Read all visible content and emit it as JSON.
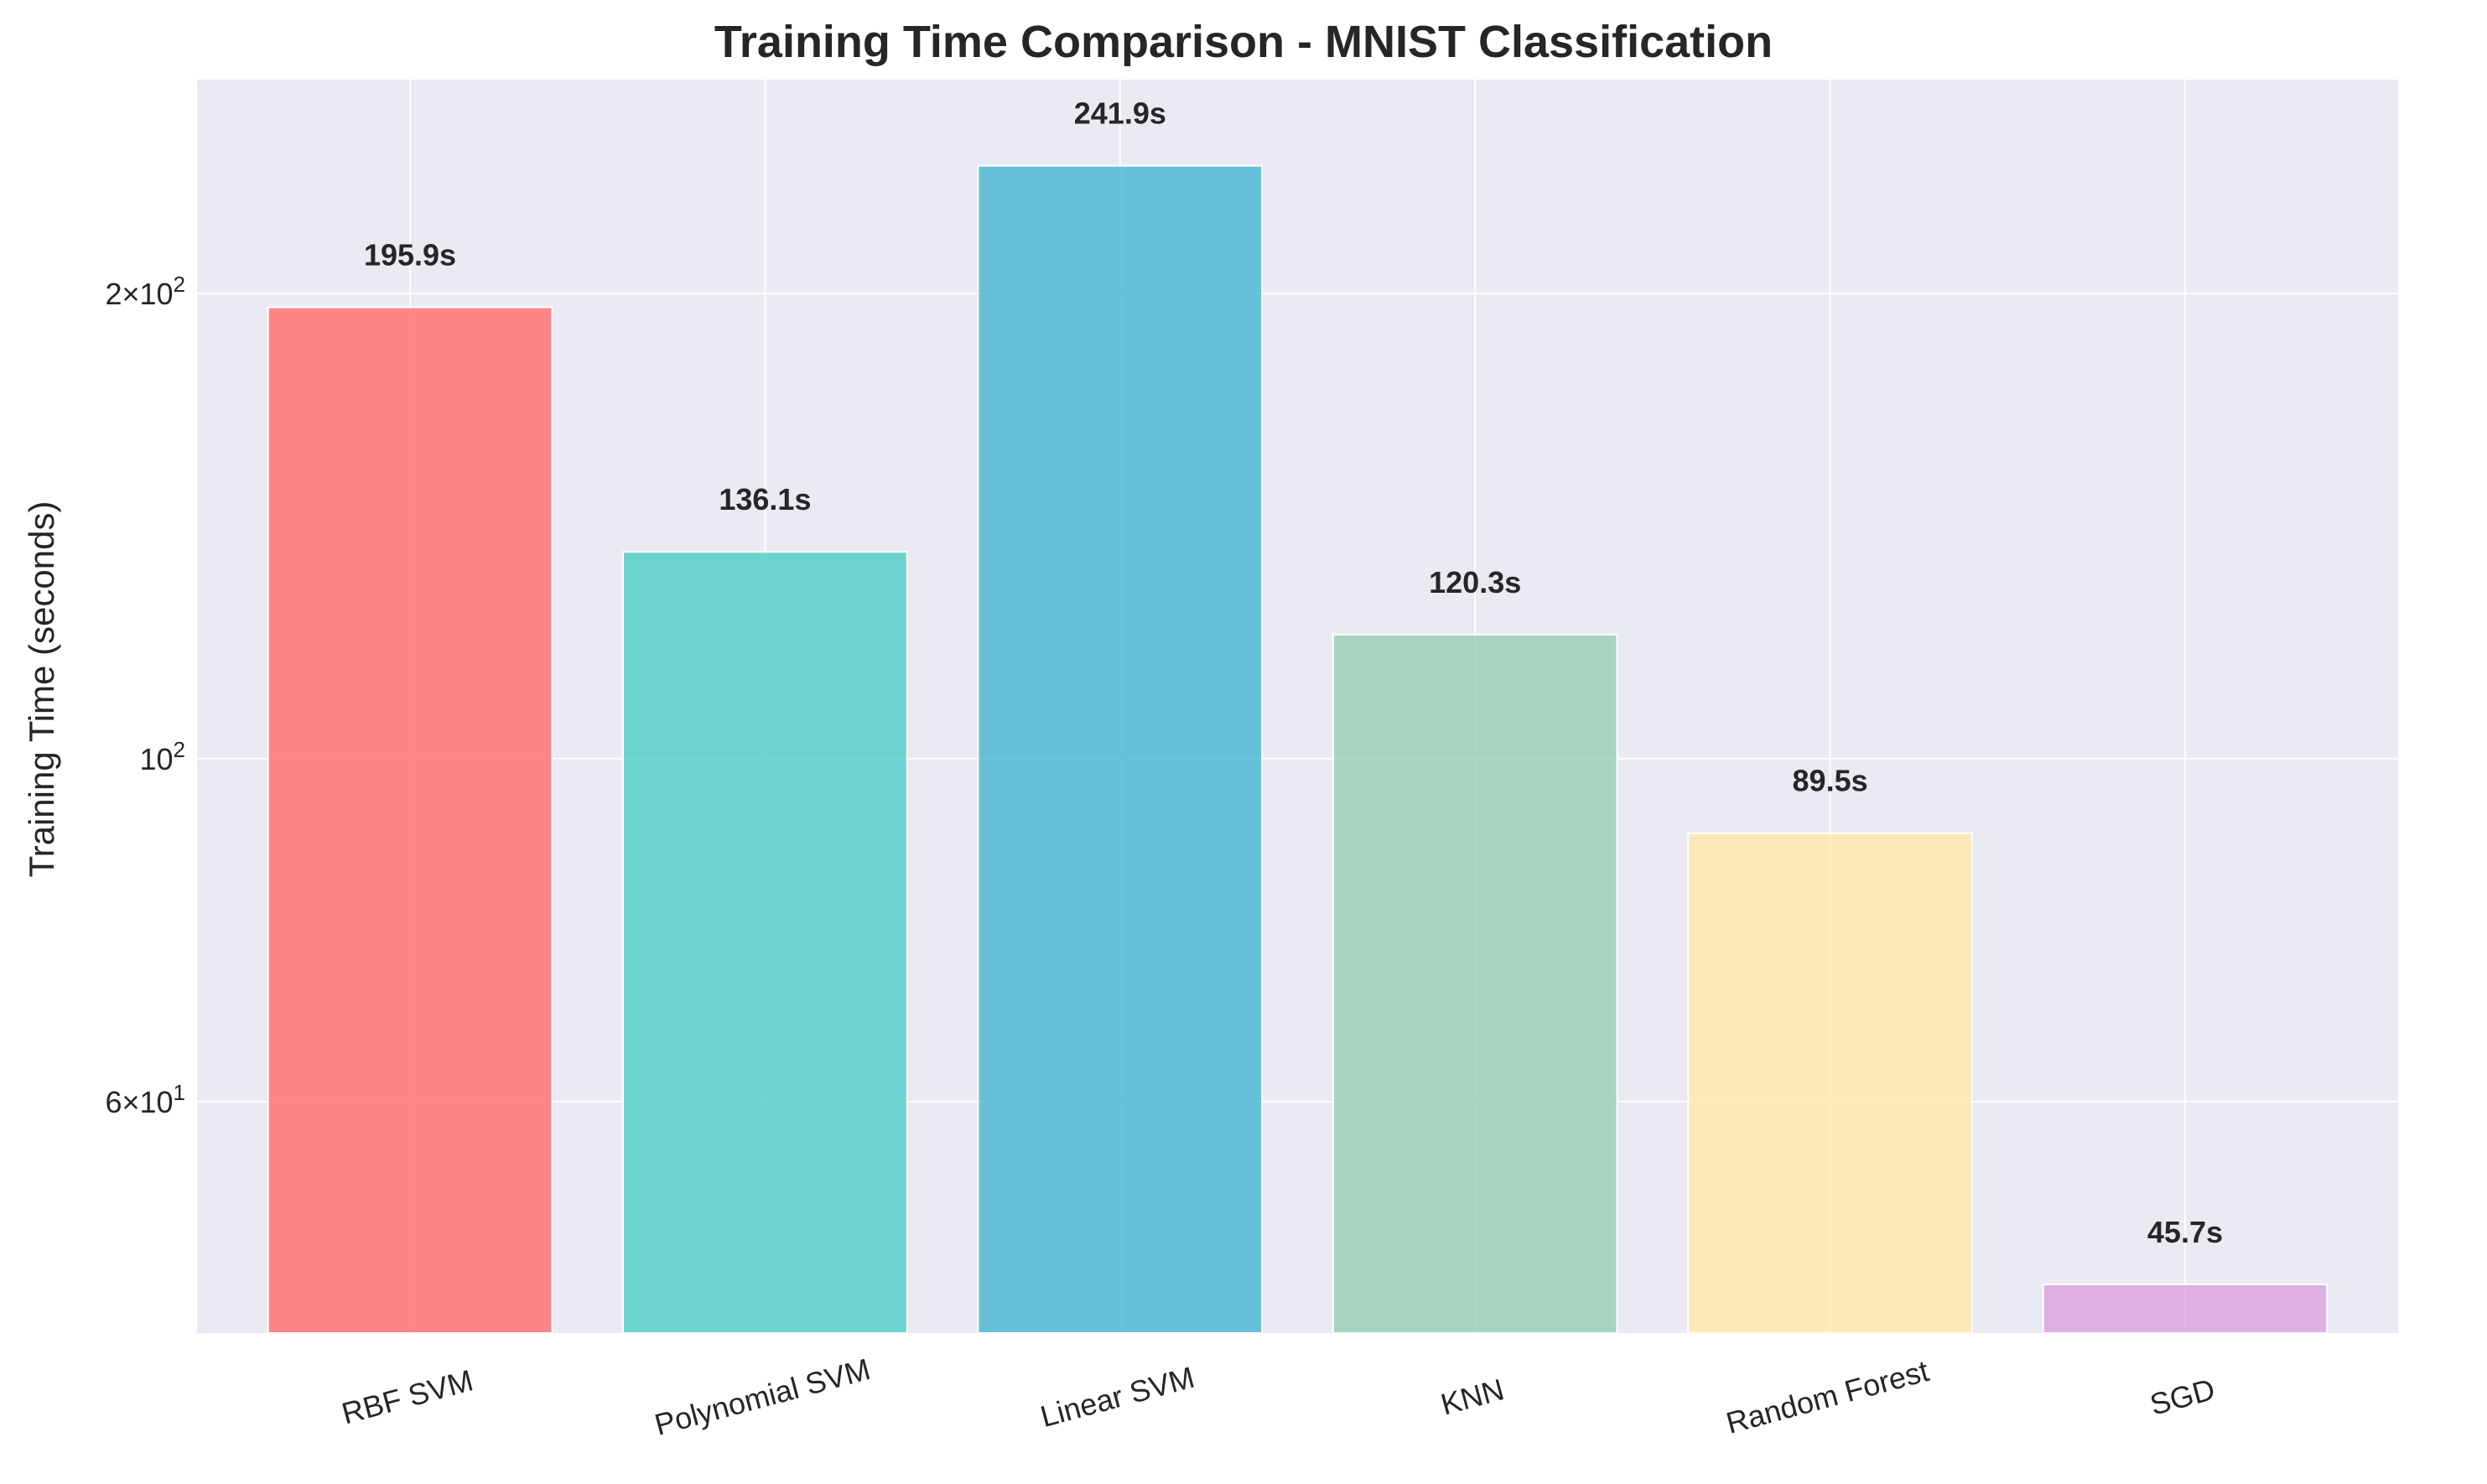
{
  "chart_data": {
    "type": "bar",
    "title": "Training Time Comparison - MNIST Classification",
    "xlabel": "",
    "ylabel": "Training Time (seconds)",
    "yscale": "log",
    "ylim": [
      42.5,
      275
    ],
    "grid": true,
    "legend": "none",
    "categories": [
      "RBF SVM",
      "Polynomial SVM",
      "Linear SVM",
      "KNN",
      "Random Forest",
      "SGD"
    ],
    "values": [
      195.9,
      136.1,
      241.9,
      120.3,
      89.5,
      45.7
    ],
    "data_labels": [
      "195.9s",
      "136.1s",
      "241.9s",
      "120.3s",
      "89.5s",
      "45.7s"
    ],
    "colors": [
      "#FF6B6B",
      "#4ECDC4",
      "#45B7D1",
      "#96CEB4",
      "#FFEAA7",
      "#DDA0DD"
    ],
    "bar_opacity": 0.8,
    "y_ticks": [
      {
        "value": 60,
        "mantissa": "6",
        "exp": "1"
      },
      {
        "value": 100,
        "mantissa": "",
        "exp": "2"
      },
      {
        "value": 200,
        "mantissa": "2",
        "exp": "2"
      }
    ],
    "style": {
      "plot_background": "#EAEAF2",
      "grid_color": "#FFFFFF",
      "text_color": "#262626"
    }
  }
}
